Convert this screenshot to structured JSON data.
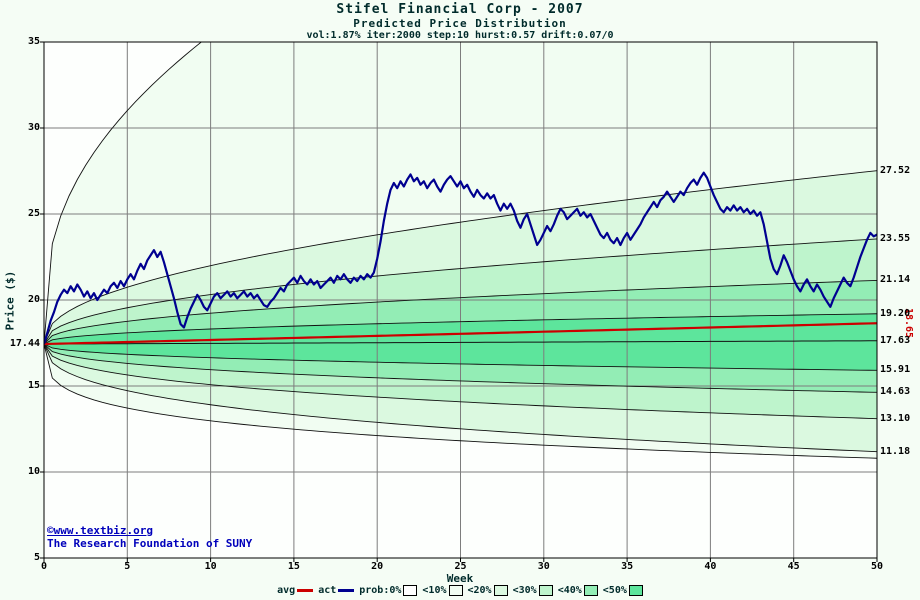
{
  "header": {
    "title": "Stifel Financial Corp - 2007",
    "subtitle": "Predicted Price Distribution",
    "params": "vol:1.87% iter:2000 step:10 hurst:0.57 drift:0.07/0"
  },
  "credits": {
    "line1": "©www.textbiz.org",
    "line2": "The Research Foundation of SUNY"
  },
  "chart_data": {
    "type": "line",
    "title": "Stifel Financial Corp - 2007",
    "subtitle": "Predicted Price Distribution",
    "xlabel": "Week",
    "ylabel": "Price ($)",
    "xlim": [
      0,
      50
    ],
    "ylim": [
      5,
      35
    ],
    "xticks": [
      0,
      5,
      10,
      15,
      20,
      25,
      30,
      35,
      40,
      45,
      50
    ],
    "yticks": [
      5,
      10,
      15,
      20,
      25,
      30,
      35
    ],
    "grid": true,
    "start": {
      "week": 0,
      "price": 17.44,
      "label": "17.44"
    },
    "avg": {
      "end": 18.65,
      "label": "18.65",
      "color": "#cc0000"
    },
    "median": {
      "end": 17.63
    },
    "boundaries": [
      {
        "name": "envelope",
        "top": 55.0,
        "bottom": 10.8,
        "h": 0.3
      },
      {
        "name": "q10",
        "top": 27.52,
        "bottom": 11.18,
        "h": 0.42
      },
      {
        "name": "q20",
        "top": 23.55,
        "bottom": 13.1,
        "h": 0.42
      },
      {
        "name": "q30",
        "top": 21.14,
        "bottom": 14.63,
        "h": 0.42
      },
      {
        "name": "q40",
        "top": 19.2,
        "bottom": 15.91,
        "h": 0.42
      }
    ],
    "region_fills": [
      "#f1fdf2",
      "#dbf9e0",
      "#bef4cc",
      "#93edb5",
      "#5de59c"
    ],
    "colors": {
      "plot_bg": "#fdfffd",
      "grid": "#7d7d7d",
      "boundary": "#111111",
      "act": "#000090"
    },
    "right_labels": [
      {
        "value": 27.52,
        "text": "27.52"
      },
      {
        "value": 23.55,
        "text": "23.55"
      },
      {
        "value": 21.14,
        "text": "21.14"
      },
      {
        "value": 19.2,
        "text": "19.20"
      },
      {
        "value": 17.63,
        "text": "17.63"
      },
      {
        "value": 15.91,
        "text": "15.91"
      },
      {
        "value": 14.63,
        "text": "14.63"
      },
      {
        "value": 13.1,
        "text": "13.10"
      },
      {
        "value": 11.18,
        "text": "11.18"
      }
    ],
    "legend": [
      {
        "label": "avg",
        "swatch": "line",
        "color": "#cc0000"
      },
      {
        "label": "act",
        "swatch": "line",
        "color": "#000090"
      },
      {
        "label": "prob:0%",
        "swatch": "box",
        "color": "#ffffff"
      },
      {
        "label": "<10%",
        "swatch": "box",
        "color": "#f1fdf2"
      },
      {
        "label": "<20%",
        "swatch": "box",
        "color": "#dbf9e0"
      },
      {
        "label": "<30%",
        "swatch": "box",
        "color": "#bef4cc"
      },
      {
        "label": "<40%",
        "swatch": "box",
        "color": "#93edb5"
      },
      {
        "label": "<50%",
        "swatch": "box",
        "color": "#5de59c"
      }
    ],
    "actual": [
      [
        0,
        17.44
      ],
      [
        0.2,
        18.1
      ],
      [
        0.4,
        18.8
      ],
      [
        0.6,
        19.3
      ],
      [
        0.8,
        19.9
      ],
      [
        1,
        20.3
      ],
      [
        1.2,
        20.6
      ],
      [
        1.4,
        20.4
      ],
      [
        1.6,
        20.8
      ],
      [
        1.8,
        20.5
      ],
      [
        2,
        20.9
      ],
      [
        2.2,
        20.6
      ],
      [
        2.4,
        20.2
      ],
      [
        2.6,
        20.5
      ],
      [
        2.8,
        20.1
      ],
      [
        3,
        20.4
      ],
      [
        3.2,
        20.0
      ],
      [
        3.4,
        20.3
      ],
      [
        3.6,
        20.6
      ],
      [
        3.8,
        20.4
      ],
      [
        4,
        20.8
      ],
      [
        4.2,
        21.0
      ],
      [
        4.4,
        20.7
      ],
      [
        4.6,
        21.1
      ],
      [
        4.8,
        20.8
      ],
      [
        5,
        21.2
      ],
      [
        5.2,
        21.5
      ],
      [
        5.4,
        21.2
      ],
      [
        5.6,
        21.7
      ],
      [
        5.8,
        22.1
      ],
      [
        6,
        21.8
      ],
      [
        6.2,
        22.3
      ],
      [
        6.4,
        22.6
      ],
      [
        6.6,
        22.9
      ],
      [
        6.8,
        22.5
      ],
      [
        7,
        22.8
      ],
      [
        7.2,
        22.2
      ],
      [
        7.4,
        21.5
      ],
      [
        7.6,
        20.8
      ],
      [
        7.8,
        20.1
      ],
      [
        8,
        19.3
      ],
      [
        8.2,
        18.6
      ],
      [
        8.4,
        18.4
      ],
      [
        8.6,
        19.0
      ],
      [
        8.8,
        19.5
      ],
      [
        9,
        19.9
      ],
      [
        9.2,
        20.3
      ],
      [
        9.4,
        20.0
      ],
      [
        9.6,
        19.6
      ],
      [
        9.8,
        19.4
      ],
      [
        10,
        19.8
      ],
      [
        10.2,
        20.2
      ],
      [
        10.4,
        20.4
      ],
      [
        10.6,
        20.1
      ],
      [
        10.8,
        20.3
      ],
      [
        11,
        20.5
      ],
      [
        11.2,
        20.2
      ],
      [
        11.4,
        20.4
      ],
      [
        11.6,
        20.1
      ],
      [
        11.8,
        20.3
      ],
      [
        12,
        20.5
      ],
      [
        12.2,
        20.2
      ],
      [
        12.4,
        20.4
      ],
      [
        12.6,
        20.1
      ],
      [
        12.8,
        20.3
      ],
      [
        13,
        20.0
      ],
      [
        13.2,
        19.7
      ],
      [
        13.4,
        19.6
      ],
      [
        13.6,
        19.9
      ],
      [
        13.8,
        20.1
      ],
      [
        14,
        20.4
      ],
      [
        14.2,
        20.7
      ],
      [
        14.4,
        20.5
      ],
      [
        14.6,
        20.9
      ],
      [
        14.8,
        21.1
      ],
      [
        15,
        21.3
      ],
      [
        15.2,
        21.0
      ],
      [
        15.4,
        21.4
      ],
      [
        15.6,
        21.1
      ],
      [
        15.8,
        20.9
      ],
      [
        16,
        21.2
      ],
      [
        16.2,
        20.9
      ],
      [
        16.4,
        21.1
      ],
      [
        16.6,
        20.7
      ],
      [
        16.8,
        20.9
      ],
      [
        17,
        21.1
      ],
      [
        17.2,
        21.3
      ],
      [
        17.4,
        21.0
      ],
      [
        17.6,
        21.4
      ],
      [
        17.8,
        21.2
      ],
      [
        18,
        21.5
      ],
      [
        18.2,
        21.2
      ],
      [
        18.4,
        21.0
      ],
      [
        18.6,
        21.3
      ],
      [
        18.8,
        21.1
      ],
      [
        19,
        21.4
      ],
      [
        19.2,
        21.2
      ],
      [
        19.4,
        21.5
      ],
      [
        19.6,
        21.3
      ],
      [
        19.8,
        21.6
      ],
      [
        20,
        22.4
      ],
      [
        20.2,
        23.4
      ],
      [
        20.4,
        24.6
      ],
      [
        20.6,
        25.6
      ],
      [
        20.8,
        26.4
      ],
      [
        21,
        26.8
      ],
      [
        21.2,
        26.5
      ],
      [
        21.4,
        26.9
      ],
      [
        21.6,
        26.6
      ],
      [
        21.8,
        27.0
      ],
      [
        22,
        27.3
      ],
      [
        22.2,
        26.9
      ],
      [
        22.4,
        27.1
      ],
      [
        22.6,
        26.7
      ],
      [
        22.8,
        26.9
      ],
      [
        23,
        26.5
      ],
      [
        23.2,
        26.8
      ],
      [
        23.4,
        27.0
      ],
      [
        23.6,
        26.6
      ],
      [
        23.8,
        26.3
      ],
      [
        24,
        26.7
      ],
      [
        24.2,
        27.0
      ],
      [
        24.4,
        27.2
      ],
      [
        24.6,
        26.9
      ],
      [
        24.8,
        26.6
      ],
      [
        25,
        26.9
      ],
      [
        25.2,
        26.5
      ],
      [
        25.4,
        26.7
      ],
      [
        25.6,
        26.3
      ],
      [
        25.8,
        26.0
      ],
      [
        26,
        26.4
      ],
      [
        26.2,
        26.1
      ],
      [
        26.4,
        25.9
      ],
      [
        26.6,
        26.2
      ],
      [
        26.8,
        25.9
      ],
      [
        27,
        26.1
      ],
      [
        27.2,
        25.6
      ],
      [
        27.4,
        25.2
      ],
      [
        27.6,
        25.6
      ],
      [
        27.8,
        25.3
      ],
      [
        28,
        25.6
      ],
      [
        28.2,
        25.2
      ],
      [
        28.4,
        24.6
      ],
      [
        28.6,
        24.2
      ],
      [
        28.8,
        24.7
      ],
      [
        29,
        25.0
      ],
      [
        29.2,
        24.4
      ],
      [
        29.4,
        23.8
      ],
      [
        29.6,
        23.2
      ],
      [
        29.8,
        23.5
      ],
      [
        30,
        23.9
      ],
      [
        30.2,
        24.3
      ],
      [
        30.4,
        24.0
      ],
      [
        30.6,
        24.4
      ],
      [
        30.8,
        24.9
      ],
      [
        31,
        25.3
      ],
      [
        31.2,
        25.1
      ],
      [
        31.4,
        24.7
      ],
      [
        31.6,
        24.9
      ],
      [
        31.8,
        25.1
      ],
      [
        32,
        25.3
      ],
      [
        32.2,
        24.9
      ],
      [
        32.4,
        25.1
      ],
      [
        32.6,
        24.8
      ],
      [
        32.8,
        25.0
      ],
      [
        33,
        24.6
      ],
      [
        33.2,
        24.2
      ],
      [
        33.4,
        23.8
      ],
      [
        33.6,
        23.6
      ],
      [
        33.8,
        23.9
      ],
      [
        34,
        23.5
      ],
      [
        34.2,
        23.3
      ],
      [
        34.4,
        23.6
      ],
      [
        34.6,
        23.2
      ],
      [
        34.8,
        23.6
      ],
      [
        35,
        23.9
      ],
      [
        35.2,
        23.5
      ],
      [
        35.4,
        23.8
      ],
      [
        35.6,
        24.1
      ],
      [
        35.8,
        24.4
      ],
      [
        36,
        24.8
      ],
      [
        36.2,
        25.1
      ],
      [
        36.4,
        25.4
      ],
      [
        36.6,
        25.7
      ],
      [
        36.8,
        25.4
      ],
      [
        37,
        25.8
      ],
      [
        37.2,
        26.0
      ],
      [
        37.4,
        26.3
      ],
      [
        37.6,
        26.0
      ],
      [
        37.8,
        25.7
      ],
      [
        38,
        26.0
      ],
      [
        38.2,
        26.3
      ],
      [
        38.4,
        26.1
      ],
      [
        38.6,
        26.5
      ],
      [
        38.8,
        26.8
      ],
      [
        39,
        27.0
      ],
      [
        39.2,
        26.7
      ],
      [
        39.4,
        27.1
      ],
      [
        39.6,
        27.4
      ],
      [
        39.8,
        27.1
      ],
      [
        40,
        26.6
      ],
      [
        40.2,
        26.1
      ],
      [
        40.4,
        25.7
      ],
      [
        40.6,
        25.3
      ],
      [
        40.8,
        25.1
      ],
      [
        41,
        25.4
      ],
      [
        41.2,
        25.2
      ],
      [
        41.4,
        25.5
      ],
      [
        41.6,
        25.2
      ],
      [
        41.8,
        25.4
      ],
      [
        42,
        25.1
      ],
      [
        42.2,
        25.3
      ],
      [
        42.4,
        25.0
      ],
      [
        42.6,
        25.2
      ],
      [
        42.8,
        24.9
      ],
      [
        43,
        25.1
      ],
      [
        43.2,
        24.4
      ],
      [
        43.4,
        23.4
      ],
      [
        43.6,
        22.4
      ],
      [
        43.8,
        21.8
      ],
      [
        44,
        21.5
      ],
      [
        44.2,
        22.0
      ],
      [
        44.4,
        22.6
      ],
      [
        44.6,
        22.2
      ],
      [
        44.8,
        21.7
      ],
      [
        45,
        21.2
      ],
      [
        45.2,
        20.8
      ],
      [
        45.4,
        20.5
      ],
      [
        45.6,
        20.9
      ],
      [
        45.8,
        21.2
      ],
      [
        46,
        20.8
      ],
      [
        46.2,
        20.5
      ],
      [
        46.4,
        20.9
      ],
      [
        46.6,
        20.6
      ],
      [
        46.8,
        20.2
      ],
      [
        47,
        19.9
      ],
      [
        47.2,
        19.6
      ],
      [
        47.4,
        20.1
      ],
      [
        47.6,
        20.5
      ],
      [
        47.8,
        20.9
      ],
      [
        48,
        21.3
      ],
      [
        48.2,
        21.0
      ],
      [
        48.4,
        20.8
      ],
      [
        48.6,
        21.3
      ],
      [
        48.8,
        21.9
      ],
      [
        49,
        22.5
      ],
      [
        49.2,
        23.0
      ],
      [
        49.4,
        23.5
      ],
      [
        49.6,
        23.9
      ],
      [
        49.8,
        23.7
      ],
      [
        50,
        23.8
      ]
    ]
  }
}
